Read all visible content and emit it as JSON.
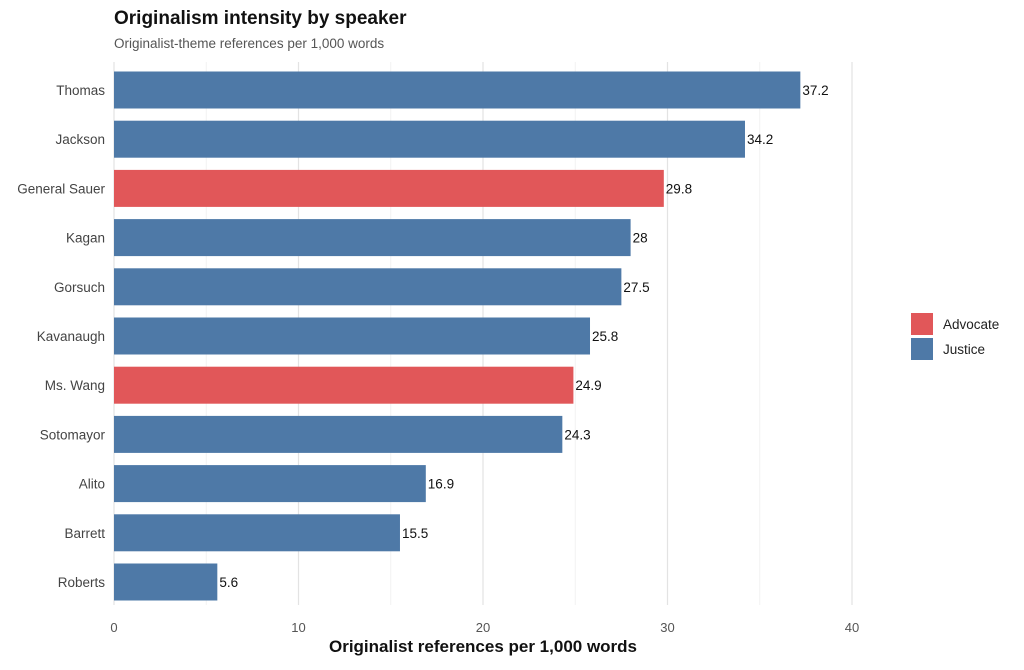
{
  "chart_data": {
    "type": "bar",
    "orientation": "horizontal",
    "title": "Originalism intensity by speaker",
    "subtitle": "Originalist-theme references per 1,000 words",
    "xlabel": "Originalist references per 1,000 words",
    "ylabel": "",
    "xlim": [
      0,
      40
    ],
    "xticks": [
      0,
      10,
      20,
      30,
      40
    ],
    "grid": true,
    "legend": {
      "placement": "right",
      "entries": [
        {
          "name": "Advocate",
          "color": "#E15759"
        },
        {
          "name": "Justice",
          "color": "#4E79A7"
        }
      ]
    },
    "categories": [
      "Thomas",
      "Jackson",
      "General Sauer",
      "Kagan",
      "Gorsuch",
      "Kavanaugh",
      "Ms. Wang",
      "Sotomayor",
      "Alito",
      "Barrett",
      "Roberts"
    ],
    "values": [
      37.2,
      34.2,
      29.8,
      28,
      27.5,
      25.8,
      24.9,
      24.3,
      16.9,
      15.5,
      5.6
    ],
    "value_labels": [
      "37.2",
      "34.2",
      "29.8",
      "28",
      "27.5",
      "25.8",
      "24.9",
      "24.3",
      "16.9",
      "15.5",
      "5.6"
    ],
    "groups": [
      "Justice",
      "Justice",
      "Advocate",
      "Justice",
      "Justice",
      "Justice",
      "Advocate",
      "Justice",
      "Justice",
      "Justice",
      "Justice"
    ]
  }
}
